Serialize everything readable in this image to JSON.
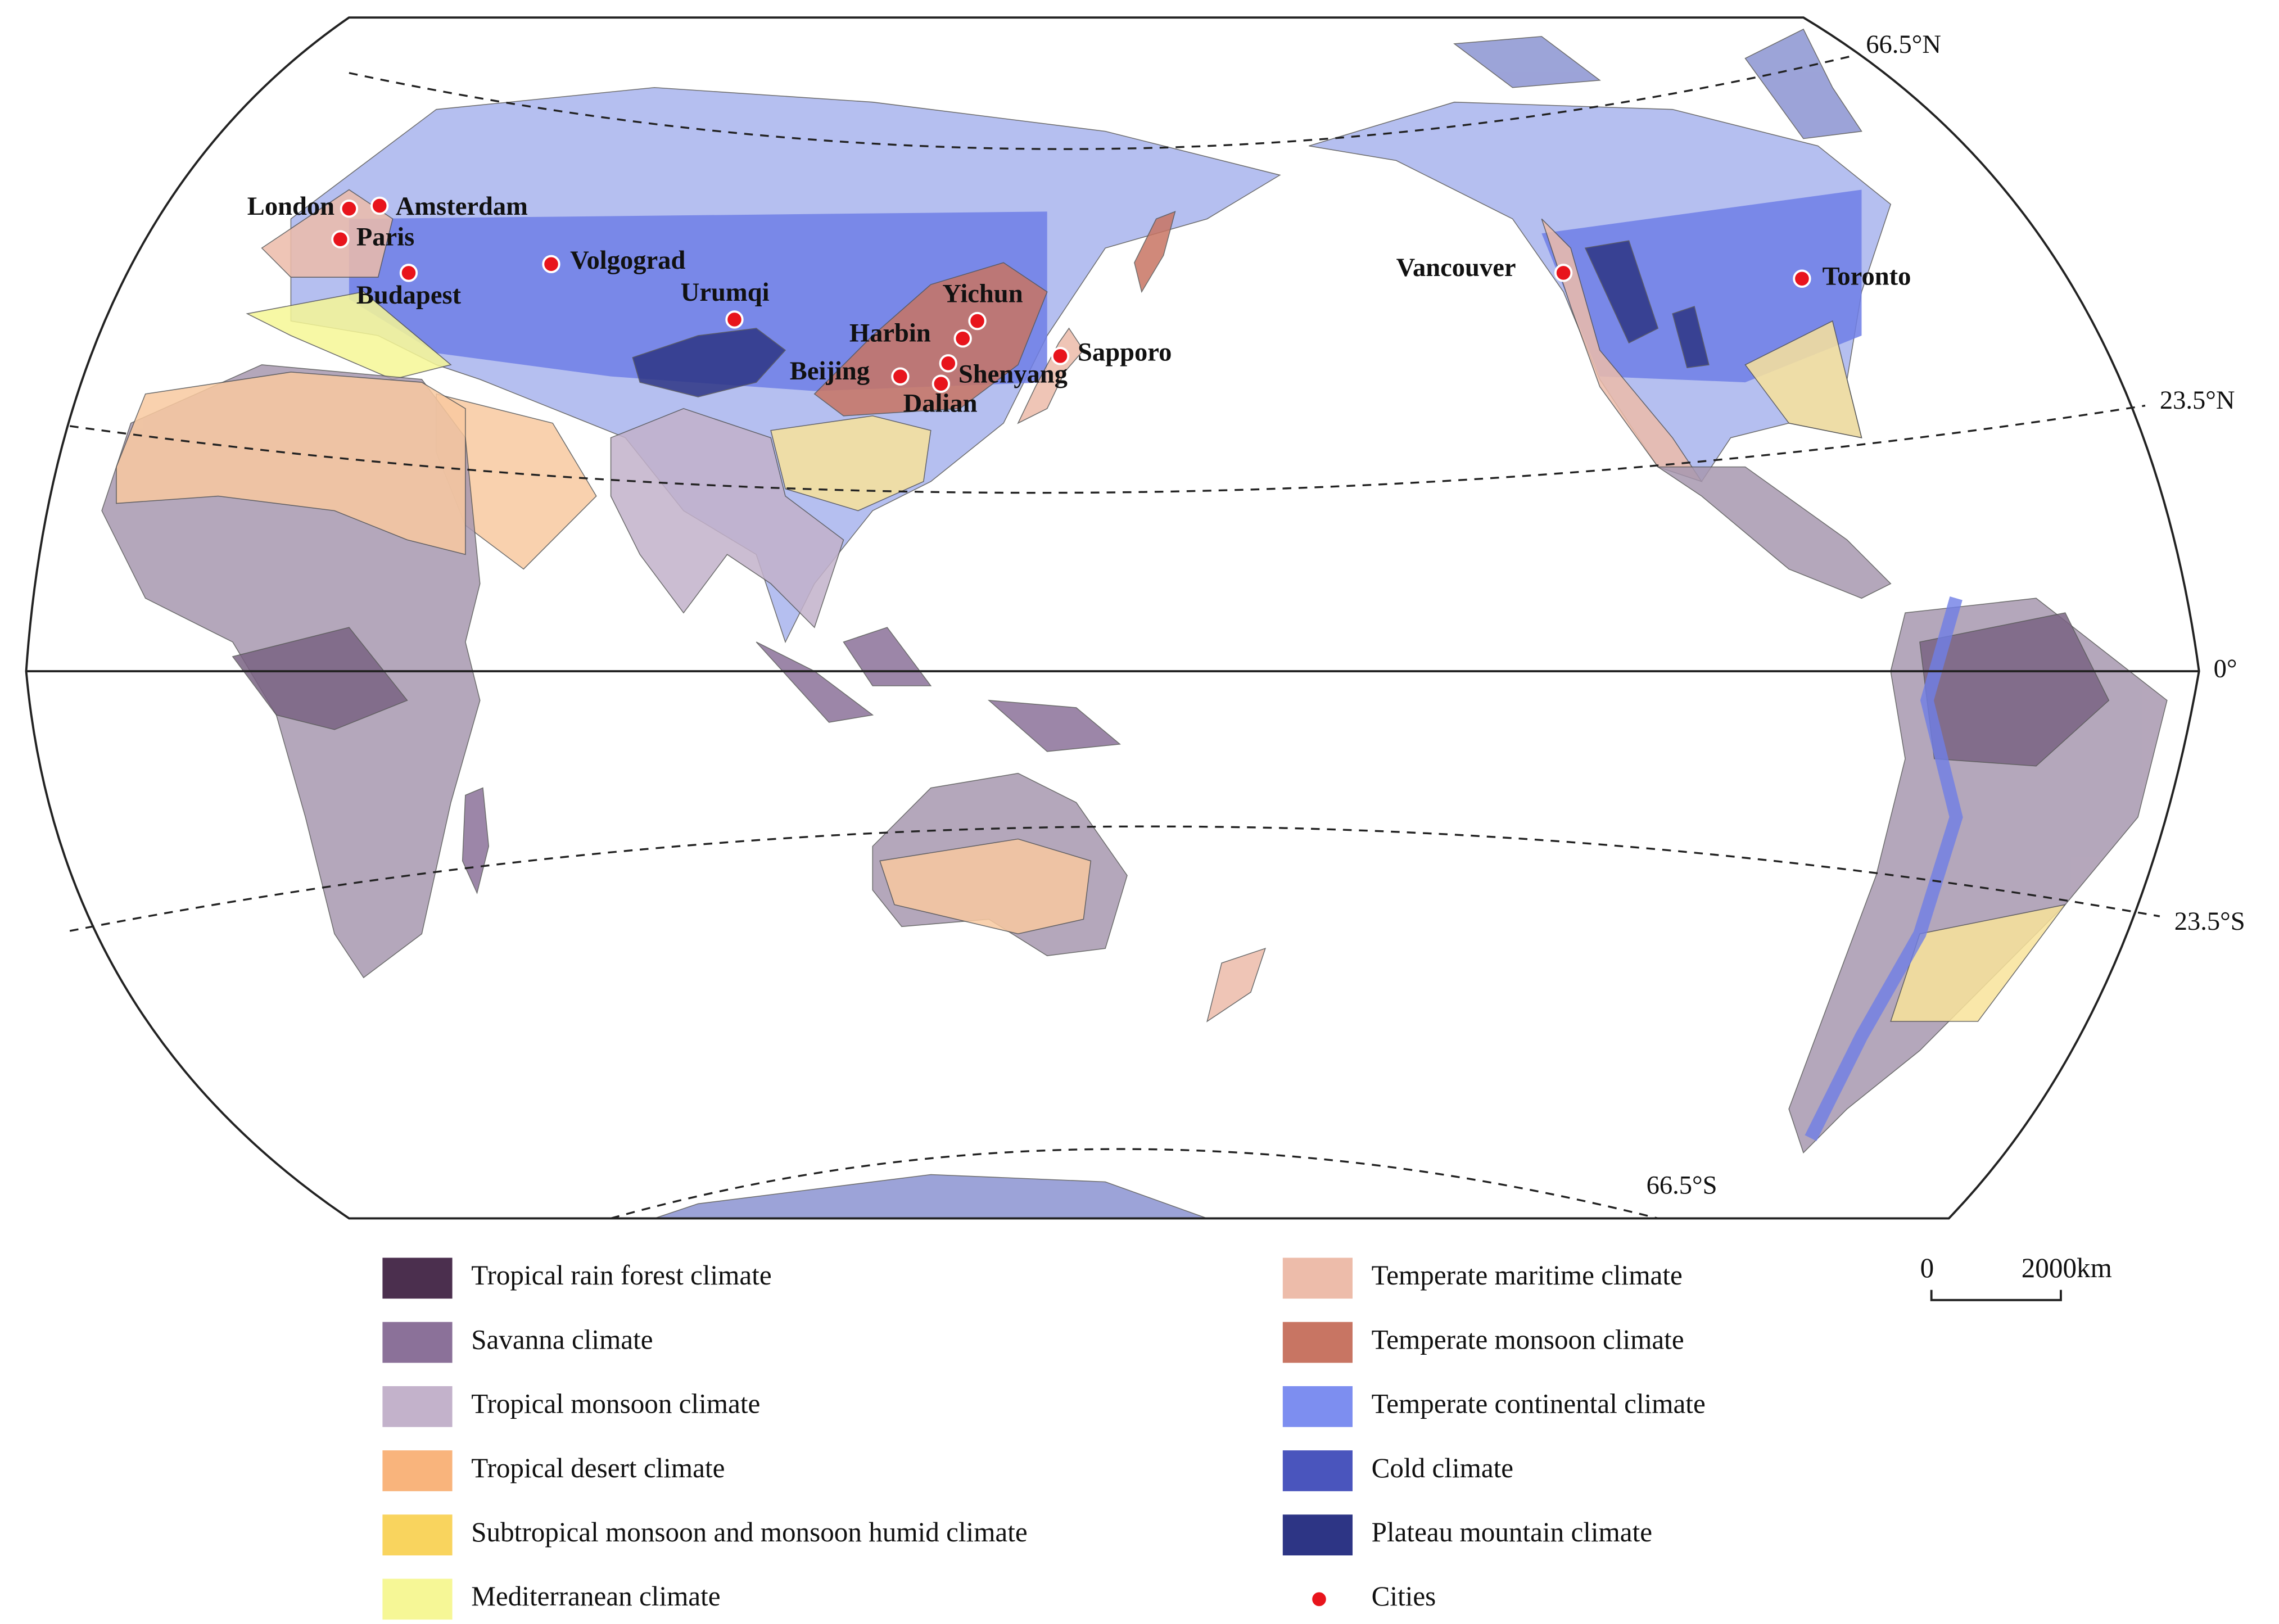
{
  "map": {
    "latitude_labels": [
      "66.5°N",
      "23.5°N",
      "0°",
      "23.5°S",
      "66.5°S"
    ],
    "cities": [
      "London",
      "Amsterdam",
      "Paris",
      "Budapest",
      "Volgograd",
      "Urumqi",
      "Yichun",
      "Harbin",
      "Beijing",
      "Shenyang",
      "Dalian",
      "Sapporo",
      "Vancouver",
      "Toronto"
    ],
    "legend": [
      {
        "label": "Tropical rain forest climate",
        "color": "#4b2f4e"
      },
      {
        "label": "Savanna climate",
        "color": "#8b7199"
      },
      {
        "label": "Tropical monsoon climate",
        "color": "#c3b2cb"
      },
      {
        "label": "Tropical desert climate",
        "color": "#f9b47c"
      },
      {
        "label": "Subtropical monsoon and monsoon humid climate",
        "color": "#f9d45e"
      },
      {
        "label": "Mediterranean climate",
        "color": "#f6f796"
      },
      {
        "label": "Temperate maritime climate",
        "color": "#edbcaa"
      },
      {
        "label": "Temperate monsoon climate",
        "color": "#c87563"
      },
      {
        "label": "Temperate continental climate",
        "color": "#7d8ef0"
      },
      {
        "label": "Cold climate",
        "color": "#4a55bd"
      },
      {
        "label": "Plateau mountain climate",
        "color": "#2d3585"
      },
      {
        "label": "Cities",
        "color": "#e8141c"
      }
    ],
    "scale": {
      "start": "0",
      "end": "2000km"
    }
  }
}
